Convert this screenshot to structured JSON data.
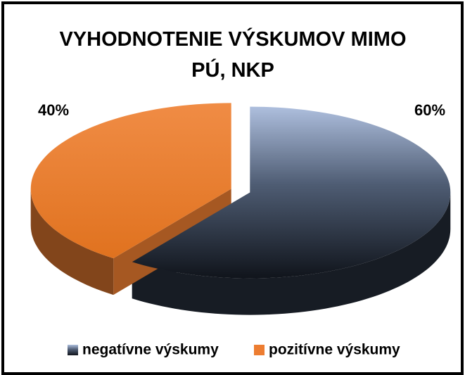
{
  "chart_data": {
    "type": "pie3d",
    "title": "VYHODNOTENIE VÝSKUMOV MIMO PÚ, NKP",
    "categories": [
      "negatívne výskumy",
      "pozitívne výskumy"
    ],
    "values": [
      60,
      40
    ],
    "value_labels": [
      "60%",
      "40%"
    ],
    "colors": [
      "#2a3342",
      "#ed7d31"
    ],
    "legend": "bottom"
  }
}
